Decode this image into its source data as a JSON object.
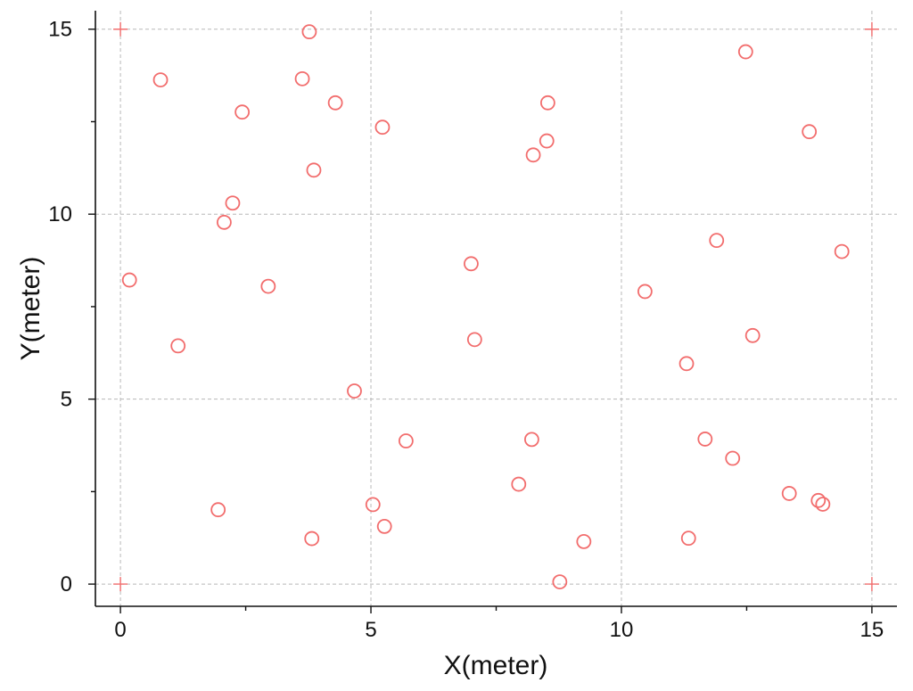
{
  "chart_data": {
    "type": "scatter",
    "title": "",
    "xlabel": "X(meter)",
    "ylabel": "Y(meter)",
    "xlim": [
      -0.5,
      15.5
    ],
    "ylim": [
      -0.6,
      15.5
    ],
    "xticks": [
      0,
      5,
      10,
      15
    ],
    "yticks": [
      0,
      5,
      10,
      15
    ],
    "xtick_labels": [
      "0",
      "5",
      "10",
      "15"
    ],
    "ytick_labels": [
      "0",
      "5",
      "10",
      "15"
    ],
    "grid": true,
    "marker_color": "#f26d6d",
    "corner_markers": [
      {
        "x": 0,
        "y": 0
      },
      {
        "x": 15,
        "y": 0
      },
      {
        "x": 0,
        "y": 15
      },
      {
        "x": 15,
        "y": 15
      }
    ],
    "points": [
      {
        "x": 3.77,
        "y": 14.93
      },
      {
        "x": 12.48,
        "y": 14.39
      },
      {
        "x": 0.8,
        "y": 13.63
      },
      {
        "x": 3.63,
        "y": 13.66
      },
      {
        "x": 4.29,
        "y": 13.01
      },
      {
        "x": 8.53,
        "y": 13.01
      },
      {
        "x": 2.43,
        "y": 12.76
      },
      {
        "x": 5.23,
        "y": 12.35
      },
      {
        "x": 13.75,
        "y": 12.23
      },
      {
        "x": 8.51,
        "y": 11.98
      },
      {
        "x": 8.24,
        "y": 11.6
      },
      {
        "x": 3.86,
        "y": 11.19
      },
      {
        "x": 2.24,
        "y": 10.3
      },
      {
        "x": 2.07,
        "y": 9.78
      },
      {
        "x": 11.9,
        "y": 9.29
      },
      {
        "x": 14.4,
        "y": 8.99
      },
      {
        "x": 7.0,
        "y": 8.66
      },
      {
        "x": 0.18,
        "y": 8.22
      },
      {
        "x": 2.95,
        "y": 8.05
      },
      {
        "x": 10.47,
        "y": 7.91
      },
      {
        "x": 12.62,
        "y": 6.72
      },
      {
        "x": 7.07,
        "y": 6.61
      },
      {
        "x": 1.15,
        "y": 6.44
      },
      {
        "x": 11.3,
        "y": 5.96
      },
      {
        "x": 4.67,
        "y": 5.22
      },
      {
        "x": 11.67,
        "y": 3.92
      },
      {
        "x": 8.21,
        "y": 3.91
      },
      {
        "x": 5.7,
        "y": 3.87
      },
      {
        "x": 12.22,
        "y": 3.4
      },
      {
        "x": 7.95,
        "y": 2.7
      },
      {
        "x": 13.35,
        "y": 2.45
      },
      {
        "x": 13.93,
        "y": 2.26
      },
      {
        "x": 14.02,
        "y": 2.16
      },
      {
        "x": 5.04,
        "y": 2.15
      },
      {
        "x": 1.95,
        "y": 2.01
      },
      {
        "x": 5.27,
        "y": 1.56
      },
      {
        "x": 3.82,
        "y": 1.23
      },
      {
        "x": 11.34,
        "y": 1.24
      },
      {
        "x": 9.25,
        "y": 1.15
      },
      {
        "x": 8.77,
        "y": 0.06
      }
    ]
  }
}
